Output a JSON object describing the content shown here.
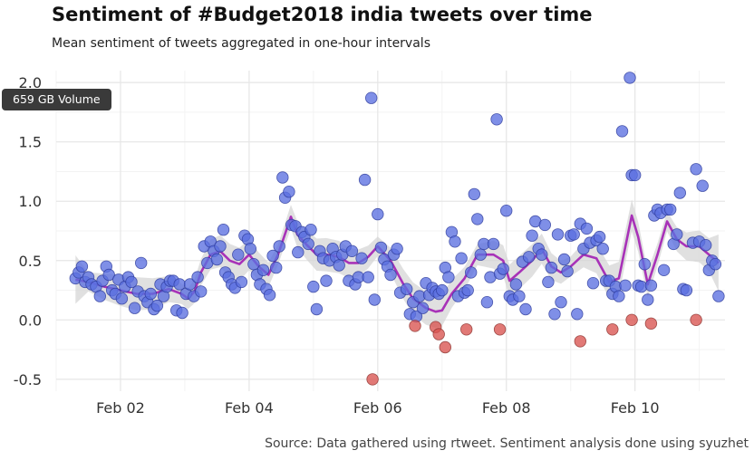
{
  "chart_data": {
    "type": "scatter",
    "title": "Sentiment of #Budget2018 india tweets over time",
    "subtitle": "Mean sentiment of tweets aggregated in one-hour intervals",
    "caption": "Source: Data gathered using rtweet. Sentiment analysis done using syuzhet",
    "x_tick_labels": [
      "Feb 02",
      "Feb 04",
      "Feb 06",
      "Feb 08",
      "Feb 10"
    ],
    "x_tick_values": [
      2,
      4,
      6,
      8,
      10
    ],
    "y_tick_labels": [
      "-0.5",
      "0.0",
      "0.5",
      "1.0",
      "1.5",
      "2.0"
    ],
    "y_tick_values": [
      -0.5,
      0,
      0.5,
      1,
      1.5,
      2
    ],
    "xlim": [
      1.0,
      11.4
    ],
    "ylim": [
      -0.6,
      2.1
    ],
    "grid": true,
    "colors": {
      "positive_point": "#5b6fe0",
      "negative_point": "#d9534f",
      "smooth_line": "#a832b8",
      "confidence_band": "#d6d6d6"
    },
    "points": [
      [
        1.3,
        0.35
      ],
      [
        1.35,
        0.4
      ],
      [
        1.4,
        0.45
      ],
      [
        1.45,
        0.32
      ],
      [
        1.5,
        0.36
      ],
      [
        1.55,
        0.3
      ],
      [
        1.62,
        0.28
      ],
      [
        1.68,
        0.2
      ],
      [
        1.72,
        0.33
      ],
      [
        1.78,
        0.45
      ],
      [
        1.82,
        0.38
      ],
      [
        1.87,
        0.25
      ],
      [
        1.92,
        0.22
      ],
      [
        1.97,
        0.34
      ],
      [
        2.02,
        0.18
      ],
      [
        2.07,
        0.28
      ],
      [
        2.12,
        0.36
      ],
      [
        2.17,
        0.32
      ],
      [
        2.22,
        0.1
      ],
      [
        2.27,
        0.24
      ],
      [
        2.32,
        0.48
      ],
      [
        2.37,
        0.2
      ],
      [
        2.42,
        0.15
      ],
      [
        2.47,
        0.22
      ],
      [
        2.52,
        0.09
      ],
      [
        2.57,
        0.12
      ],
      [
        2.62,
        0.3
      ],
      [
        2.67,
        0.2
      ],
      [
        2.72,
        0.28
      ],
      [
        2.77,
        0.33
      ],
      [
        2.82,
        0.33
      ],
      [
        2.87,
        0.08
      ],
      [
        2.92,
        0.3
      ],
      [
        2.96,
        0.06
      ],
      [
        3.02,
        0.22
      ],
      [
        3.08,
        0.3
      ],
      [
        3.14,
        0.2
      ],
      [
        3.2,
        0.36
      ],
      [
        3.25,
        0.24
      ],
      [
        3.3,
        0.62
      ],
      [
        3.35,
        0.48
      ],
      [
        3.4,
        0.66
      ],
      [
        3.45,
        0.58
      ],
      [
        3.5,
        0.51
      ],
      [
        3.55,
        0.62
      ],
      [
        3.6,
        0.76
      ],
      [
        3.63,
        0.4
      ],
      [
        3.68,
        0.36
      ],
      [
        3.73,
        0.3
      ],
      [
        3.78,
        0.27
      ],
      [
        3.83,
        0.55
      ],
      [
        3.88,
        0.32
      ],
      [
        3.93,
        0.71
      ],
      [
        3.98,
        0.68
      ],
      [
        4.02,
        0.6
      ],
      [
        4.07,
        0.47
      ],
      [
        4.12,
        0.38
      ],
      [
        4.17,
        0.3
      ],
      [
        4.22,
        0.42
      ],
      [
        4.27,
        0.26
      ],
      [
        4.32,
        0.21
      ],
      [
        4.37,
        0.54
      ],
      [
        4.42,
        0.44
      ],
      [
        4.47,
        0.62
      ],
      [
        4.52,
        1.2
      ],
      [
        4.56,
        1.03
      ],
      [
        4.62,
        1.08
      ],
      [
        4.66,
        0.8
      ],
      [
        4.72,
        0.79
      ],
      [
        4.76,
        0.57
      ],
      [
        4.82,
        0.74
      ],
      [
        4.86,
        0.7
      ],
      [
        4.92,
        0.64
      ],
      [
        4.96,
        0.76
      ],
      [
        5.0,
        0.28
      ],
      [
        5.05,
        0.09
      ],
      [
        5.1,
        0.58
      ],
      [
        5.15,
        0.52
      ],
      [
        5.2,
        0.33
      ],
      [
        5.25,
        0.5
      ],
      [
        5.3,
        0.6
      ],
      [
        5.35,
        0.53
      ],
      [
        5.4,
        0.46
      ],
      [
        5.45,
        0.55
      ],
      [
        5.5,
        0.62
      ],
      [
        5.55,
        0.33
      ],
      [
        5.6,
        0.58
      ],
      [
        5.65,
        0.3
      ],
      [
        5.7,
        0.36
      ],
      [
        5.75,
        0.52
      ],
      [
        5.8,
        1.18
      ],
      [
        5.85,
        0.36
      ],
      [
        5.9,
        1.87
      ],
      [
        5.95,
        0.17
      ],
      [
        6.0,
        0.89
      ],
      [
        6.05,
        0.61
      ],
      [
        6.1,
        0.51
      ],
      [
        6.15,
        0.45
      ],
      [
        6.2,
        0.38
      ],
      [
        6.25,
        0.55
      ],
      [
        6.3,
        0.6
      ],
      [
        6.35,
        0.23
      ],
      [
        6.45,
        0.26
      ],
      [
        6.5,
        0.05
      ],
      [
        6.55,
        0.15
      ],
      [
        6.6,
        0.03
      ],
      [
        6.65,
        0.2
      ],
      [
        6.7,
        0.1
      ],
      [
        6.75,
        0.31
      ],
      [
        6.8,
        0.21
      ],
      [
        6.85,
        0.27
      ],
      [
        6.9,
        0.24
      ],
      [
        6.95,
        0.22
      ],
      [
        7.0,
        0.25
      ],
      [
        7.05,
        0.44
      ],
      [
        7.1,
        0.36
      ],
      [
        7.15,
        0.74
      ],
      [
        7.2,
        0.66
      ],
      [
        7.25,
        0.2
      ],
      [
        7.3,
        0.52
      ],
      [
        7.35,
        0.23
      ],
      [
        7.4,
        0.25
      ],
      [
        7.45,
        0.4
      ],
      [
        7.5,
        1.06
      ],
      [
        7.55,
        0.85
      ],
      [
        7.6,
        0.55
      ],
      [
        7.65,
        0.64
      ],
      [
        7.7,
        0.15
      ],
      [
        7.75,
        0.36
      ],
      [
        7.8,
        0.64
      ],
      [
        7.85,
        1.69
      ],
      [
        7.9,
        0.39
      ],
      [
        7.95,
        0.43
      ],
      [
        8.0,
        0.92
      ],
      [
        8.05,
        0.2
      ],
      [
        8.1,
        0.17
      ],
      [
        8.15,
        0.3
      ],
      [
        8.2,
        0.2
      ],
      [
        8.25,
        0.49
      ],
      [
        8.3,
        0.09
      ],
      [
        8.35,
        0.53
      ],
      [
        8.4,
        0.71
      ],
      [
        8.45,
        0.83
      ],
      [
        8.5,
        0.6
      ],
      [
        8.55,
        0.55
      ],
      [
        8.6,
        0.8
      ],
      [
        8.65,
        0.32
      ],
      [
        8.7,
        0.44
      ],
      [
        8.75,
        0.05
      ],
      [
        8.8,
        0.72
      ],
      [
        8.85,
        0.15
      ],
      [
        8.9,
        0.51
      ],
      [
        8.95,
        0.41
      ],
      [
        9.0,
        0.71
      ],
      [
        9.05,
        0.72
      ],
      [
        9.1,
        0.05
      ],
      [
        9.15,
        0.81
      ],
      [
        9.2,
        0.6
      ],
      [
        9.25,
        0.77
      ],
      [
        9.3,
        0.65
      ],
      [
        9.35,
        0.31
      ],
      [
        9.4,
        0.67
      ],
      [
        9.45,
        0.7
      ],
      [
        9.5,
        0.6
      ],
      [
        9.55,
        0.33
      ],
      [
        9.6,
        0.33
      ],
      [
        9.65,
        0.22
      ],
      [
        9.7,
        0.28
      ],
      [
        9.75,
        0.2
      ],
      [
        9.8,
        1.59
      ],
      [
        9.85,
        0.29
      ],
      [
        9.92,
        2.04
      ],
      [
        9.95,
        1.22
      ],
      [
        10.0,
        1.22
      ],
      [
        10.05,
        0.29
      ],
      [
        10.1,
        0.28
      ],
      [
        10.15,
        0.47
      ],
      [
        10.2,
        0.17
      ],
      [
        10.25,
        0.29
      ],
      [
        10.3,
        0.88
      ],
      [
        10.35,
        0.93
      ],
      [
        10.4,
        0.9
      ],
      [
        10.45,
        0.42
      ],
      [
        10.5,
        0.93
      ],
      [
        10.55,
        0.93
      ],
      [
        10.6,
        0.64
      ],
      [
        10.65,
        0.72
      ],
      [
        10.7,
        1.07
      ],
      [
        10.75,
        0.26
      ],
      [
        10.8,
        0.25
      ],
      [
        10.9,
        0.65
      ],
      [
        10.95,
        1.27
      ],
      [
        11.0,
        0.66
      ],
      [
        11.05,
        1.13
      ],
      [
        11.1,
        0.63
      ],
      [
        11.15,
        0.42
      ],
      [
        11.2,
        0.5
      ],
      [
        11.25,
        0.47
      ],
      [
        11.3,
        0.2
      ],
      [
        5.92,
        -0.5
      ],
      [
        6.58,
        -0.05
      ],
      [
        6.9,
        -0.06
      ],
      [
        6.95,
        -0.12
      ],
      [
        7.05,
        -0.23
      ],
      [
        7.38,
        -0.08
      ],
      [
        7.9,
        -0.08
      ],
      [
        9.15,
        -0.18
      ],
      [
        9.65,
        -0.08
      ],
      [
        9.95,
        0.0
      ],
      [
        10.25,
        -0.03
      ],
      [
        10.95,
        0.0
      ]
    ],
    "smooth": [
      [
        1.3,
        0.34
      ],
      [
        1.5,
        0.32
      ],
      [
        1.75,
        0.28
      ],
      [
        2.0,
        0.25
      ],
      [
        2.25,
        0.22
      ],
      [
        2.5,
        0.22
      ],
      [
        2.75,
        0.26
      ],
      [
        2.95,
        0.22
      ],
      [
        3.05,
        0.18
      ],
      [
        3.15,
        0.24
      ],
      [
        3.25,
        0.4
      ],
      [
        3.4,
        0.55
      ],
      [
        3.55,
        0.58
      ],
      [
        3.7,
        0.5
      ],
      [
        3.85,
        0.47
      ],
      [
        4.0,
        0.55
      ],
      [
        4.15,
        0.45
      ],
      [
        4.3,
        0.38
      ],
      [
        4.45,
        0.55
      ],
      [
        4.65,
        0.87
      ],
      [
        4.75,
        0.72
      ],
      [
        4.9,
        0.63
      ],
      [
        5.05,
        0.55
      ],
      [
        5.2,
        0.55
      ],
      [
        5.4,
        0.53
      ],
      [
        5.55,
        0.48
      ],
      [
        5.7,
        0.48
      ],
      [
        5.85,
        0.53
      ],
      [
        6.0,
        0.62
      ],
      [
        6.2,
        0.5
      ],
      [
        6.4,
        0.3
      ],
      [
        6.55,
        0.18
      ],
      [
        6.75,
        0.1
      ],
      [
        6.9,
        0.07
      ],
      [
        7.0,
        0.08
      ],
      [
        7.15,
        0.22
      ],
      [
        7.35,
        0.35
      ],
      [
        7.55,
        0.55
      ],
      [
        7.8,
        0.55
      ],
      [
        7.95,
        0.5
      ],
      [
        8.05,
        0.33
      ],
      [
        8.2,
        0.4
      ],
      [
        8.4,
        0.5
      ],
      [
        8.55,
        0.6
      ],
      [
        8.7,
        0.45
      ],
      [
        8.85,
        0.4
      ],
      [
        9.0,
        0.45
      ],
      [
        9.2,
        0.55
      ],
      [
        9.4,
        0.52
      ],
      [
        9.6,
        0.32
      ],
      [
        9.75,
        0.35
      ],
      [
        9.95,
        0.88
      ],
      [
        10.05,
        0.7
      ],
      [
        10.2,
        0.3
      ],
      [
        10.35,
        0.55
      ],
      [
        10.5,
        0.83
      ],
      [
        10.65,
        0.68
      ],
      [
        10.8,
        0.62
      ],
      [
        11.0,
        0.62
      ],
      [
        11.15,
        0.55
      ],
      [
        11.3,
        0.48
      ]
    ]
  },
  "tooltip": {
    "text": "659 GB Volume"
  }
}
